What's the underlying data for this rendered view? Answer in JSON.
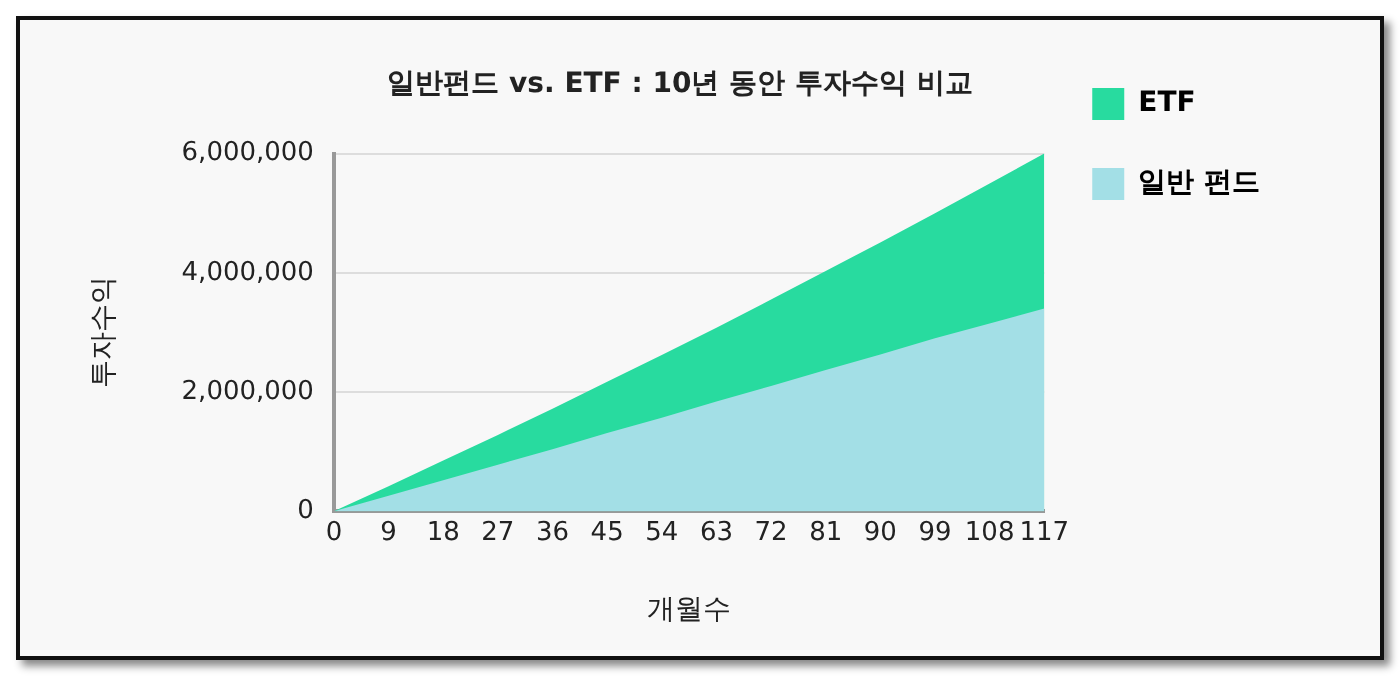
{
  "chart_data": {
    "type": "area",
    "title": "일반펀드 vs. ETF : 10년 동안 투자수익 비교",
    "xlabel": "개월수",
    "ylabel": "투자수익",
    "x": [
      0,
      9,
      18,
      27,
      36,
      45,
      54,
      63,
      72,
      81,
      90,
      99,
      108,
      117
    ],
    "series": [
      {
        "name": "ETF",
        "color": "#28db9f",
        "values": [
          0,
          420000,
          850000,
          1280000,
          1720000,
          2170000,
          2620000,
          3080000,
          3550000,
          4030000,
          4510000,
          5000000,
          5500000,
          6000000
        ]
      },
      {
        "name": "일반 펀드",
        "color": "#a3dfe6",
        "values": [
          0,
          260000,
          520000,
          780000,
          1040000,
          1310000,
          1570000,
          1840000,
          2100000,
          2370000,
          2630000,
          2900000,
          3150000,
          3400000
        ]
      }
    ],
    "xlim": [
      0,
      117
    ],
    "xticks": [
      0,
      9,
      18,
      27,
      36,
      45,
      54,
      63,
      72,
      81,
      90,
      99,
      108,
      117
    ],
    "ylim": [
      0,
      6000000
    ],
    "yticks": [
      0,
      {
        "value": 2000000,
        "label": "2,000,000"
      },
      {
        "value": 4000000,
        "label": "4,000,000"
      },
      {
        "value": 6000000,
        "label": "6,000,000"
      }
    ],
    "grid": "y",
    "legend": "top right",
    "marker": "none"
  }
}
